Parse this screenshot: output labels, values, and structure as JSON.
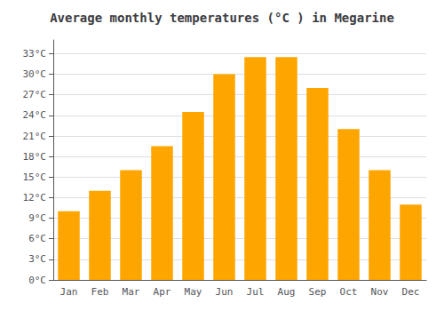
{
  "chart_data": {
    "type": "bar",
    "title": "Average monthly temperatures (°C ) in Megarine",
    "categories": [
      "Jan",
      "Feb",
      "Mar",
      "Apr",
      "May",
      "Jun",
      "Jul",
      "Aug",
      "Sep",
      "Oct",
      "Nov",
      "Dec"
    ],
    "values": [
      10,
      13,
      16,
      19.5,
      24.5,
      30,
      32.5,
      32.5,
      28,
      22,
      16,
      11
    ],
    "color": "#FFA500",
    "ylim": [
      0,
      35
    ],
    "yticks": [
      {
        "value": 0,
        "label": "0°C"
      },
      {
        "value": 3,
        "label": "3°C"
      },
      {
        "value": 6,
        "label": "6°C"
      },
      {
        "value": 9,
        "label": "9°C"
      },
      {
        "value": 12,
        "label": "12°C"
      },
      {
        "value": 15,
        "label": "15°C"
      },
      {
        "value": 18,
        "label": "18°C"
      },
      {
        "value": 21,
        "label": "21°C"
      },
      {
        "value": 24,
        "label": "24°C"
      },
      {
        "value": 27,
        "label": "27°C"
      },
      {
        "value": 30,
        "label": "30°C"
      },
      {
        "value": 33,
        "label": "33°C"
      }
    ],
    "grid": true
  }
}
